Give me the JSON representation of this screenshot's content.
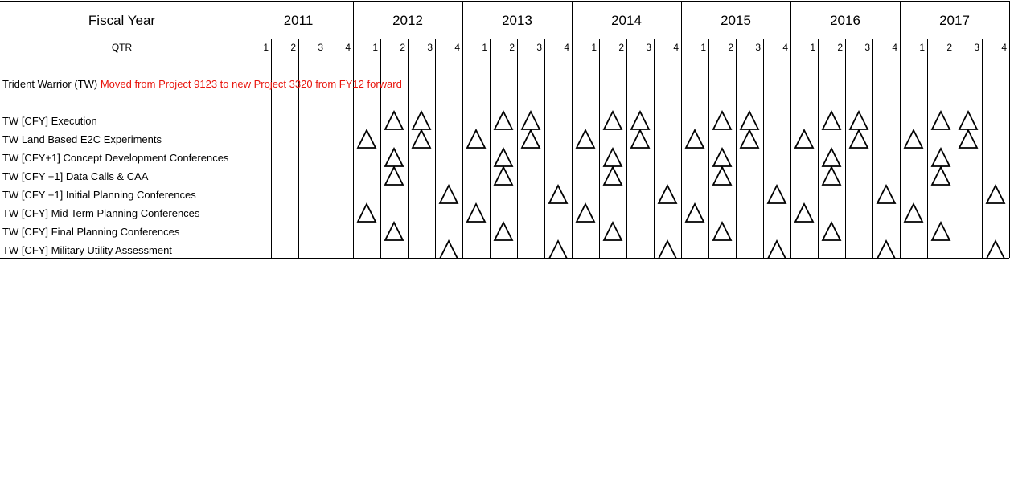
{
  "header": {
    "fiscal_year_label": "Fiscal Year",
    "qtr_label": "QTR",
    "years": [
      "2011",
      "2012",
      "2013",
      "2014",
      "2015",
      "2016",
      "2017"
    ],
    "quarters": [
      "1",
      "2",
      "3",
      "4"
    ]
  },
  "title": {
    "program": "Trident Warrior (TW)",
    "note": "Moved from Project 9123 to new Project 3320 from FY12 forward"
  },
  "rows": [
    {
      "label": "TW [CFY] Execution",
      "marks": [
        [
          "2012",
          2
        ],
        [
          "2012",
          3
        ],
        [
          "2013",
          2
        ],
        [
          "2013",
          3
        ],
        [
          "2014",
          2
        ],
        [
          "2014",
          3
        ],
        [
          "2015",
          2
        ],
        [
          "2015",
          3
        ],
        [
          "2016",
          2
        ],
        [
          "2016",
          3
        ],
        [
          "2017",
          2
        ],
        [
          "2017",
          3
        ]
      ]
    },
    {
      "label": "TW Land Based E2C Experiments",
      "marks": [
        [
          "2012",
          1
        ],
        [
          "2012",
          3
        ],
        [
          "2013",
          1
        ],
        [
          "2013",
          3
        ],
        [
          "2014",
          1
        ],
        [
          "2014",
          3
        ],
        [
          "2015",
          1
        ],
        [
          "2015",
          3
        ],
        [
          "2016",
          1
        ],
        [
          "2016",
          3
        ],
        [
          "2017",
          1
        ],
        [
          "2017",
          3
        ]
      ]
    },
    {
      "label": "TW [CFY+1] Concept Development Conferences",
      "marks": [
        [
          "2012",
          2
        ],
        [
          "2013",
          2
        ],
        [
          "2014",
          2
        ],
        [
          "2015",
          2
        ],
        [
          "2016",
          2
        ],
        [
          "2017",
          2
        ]
      ]
    },
    {
      "label": "TW [CFY +1] Data Calls & CAA",
      "marks": [
        [
          "2012",
          2
        ],
        [
          "2013",
          2
        ],
        [
          "2014",
          2
        ],
        [
          "2015",
          2
        ],
        [
          "2016",
          2
        ],
        [
          "2017",
          2
        ]
      ]
    },
    {
      "label": "TW [CFY +1] Initial Planning Conferences",
      "marks": [
        [
          "2012",
          4
        ],
        [
          "2013",
          4
        ],
        [
          "2014",
          4
        ],
        [
          "2015",
          4
        ],
        [
          "2016",
          4
        ],
        [
          "2017",
          4
        ]
      ]
    },
    {
      "label": "TW [CFY] Mid Term Planning Conferences",
      "marks": [
        [
          "2012",
          1
        ],
        [
          "2013",
          1
        ],
        [
          "2014",
          1
        ],
        [
          "2015",
          1
        ],
        [
          "2016",
          1
        ],
        [
          "2017",
          1
        ]
      ]
    },
    {
      "label": "TW [CFY] Final Planning Conferences",
      "marks": [
        [
          "2012",
          2
        ],
        [
          "2013",
          2
        ],
        [
          "2014",
          2
        ],
        [
          "2015",
          2
        ],
        [
          "2016",
          2
        ],
        [
          "2017",
          2
        ]
      ]
    },
    {
      "label": "TW [CFY] Military Utility Assessment",
      "marks": [
        [
          "2012",
          4
        ],
        [
          "2013",
          4
        ],
        [
          "2014",
          4
        ],
        [
          "2015",
          4
        ],
        [
          "2016",
          4
        ],
        [
          "2017",
          4
        ]
      ]
    }
  ],
  "marker_icon": "triangle-outline-icon",
  "colors": {
    "note": "#e8140c",
    "grid": "#000000"
  }
}
